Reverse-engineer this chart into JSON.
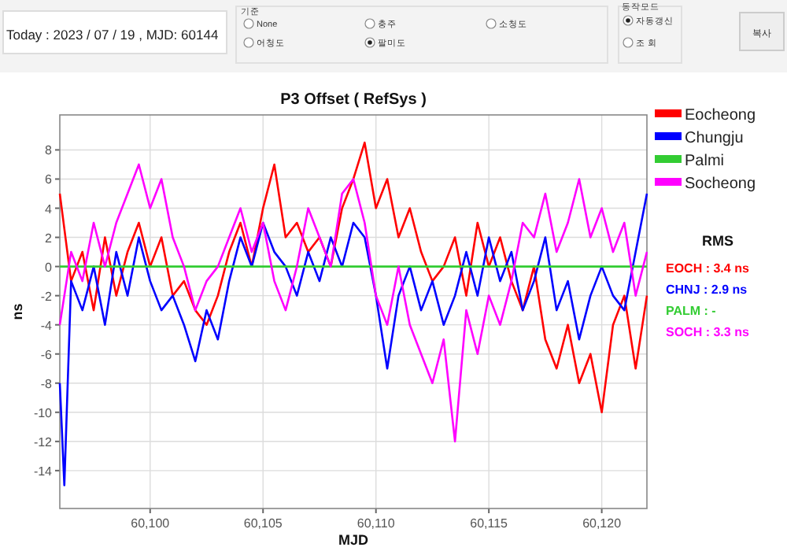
{
  "chart_data": {
    "type": "line",
    "title": "P3 Offset ( RefSys )",
    "xlabel": "MJD",
    "ylabel": "ns",
    "xlim": [
      60096,
      60122
    ],
    "ylim": [
      -16.6,
      10.4
    ],
    "xticks": [
      {
        "value": 60100,
        "label": "60,100"
      },
      {
        "value": 60105,
        "label": "60,105"
      },
      {
        "value": 60110,
        "label": "60,110"
      },
      {
        "value": 60115,
        "label": "60,115"
      },
      {
        "value": 60120,
        "label": "60,120"
      }
    ],
    "yticks": [
      -14,
      -12,
      -10,
      -8,
      -6,
      -4,
      -2,
      0,
      2,
      4,
      6,
      8
    ],
    "grid": true,
    "legend": "top right",
    "marker": "none",
    "line_style": "solid",
    "x": [
      60096,
      60096.5,
      60097,
      60097.5,
      60098,
      60098.5,
      60099,
      60099.5,
      60100,
      60100.5,
      60101,
      60101.5,
      60102,
      60102.5,
      60103,
      60103.5,
      60104,
      60104.5,
      60105,
      60105.5,
      60106,
      60106.5,
      60107,
      60107.5,
      60108,
      60108.5,
      60109,
      60109.5,
      60110,
      60110.5,
      60111,
      60111.5,
      60112,
      60112.5,
      60113,
      60113.5,
      60114,
      60114.5,
      60115,
      60115.5,
      60116,
      60116.5,
      60117,
      60117.5,
      60118,
      60118.5,
      60119,
      60119.5,
      60120,
      60120.5,
      60121,
      60121.5,
      60122
    ],
    "series": [
      {
        "name": "Eocheong",
        "color": "#ff0000",
        "values": [
          5,
          -1,
          1,
          -3,
          2,
          -2,
          1,
          3,
          0,
          2,
          -2,
          -1,
          -3,
          -4,
          -2,
          1,
          3,
          0,
          4,
          7,
          2,
          3,
          1,
          2,
          0,
          4,
          6,
          8.5,
          4,
          6,
          2,
          4,
          1,
          -1,
          0,
          2,
          -2,
          3,
          0,
          2,
          -1,
          -3,
          0,
          -5,
          -7,
          -4,
          -8,
          -6,
          -10,
          -4,
          -2,
          -7,
          -2
        ]
      },
      {
        "name": "Chungju",
        "color": "#0000ff",
        "x": [
          60096,
          60096.2,
          60096.5,
          60097,
          60097.5,
          60098,
          60098.5,
          60099,
          60099.5,
          60100,
          60100.5,
          60101,
          60101.5,
          60102,
          60102.5,
          60103,
          60103.5,
          60104,
          60104.5,
          60105,
          60105.5,
          60106,
          60106.5,
          60107,
          60107.5,
          60108,
          60108.5,
          60109,
          60109.5,
          60110,
          60110.5,
          60111,
          60111.5,
          60112,
          60112.5,
          60113,
          60113.5,
          60114,
          60114.5,
          60115,
          60115.5,
          60116,
          60116.5,
          60117,
          60117.5,
          60118,
          60118.5,
          60119,
          60119.5,
          60120,
          60120.5,
          60121,
          60121.5,
          60122
        ],
        "values": [
          -8,
          -15,
          -1,
          -3,
          0,
          -4,
          1,
          -2,
          2,
          -1,
          -3,
          -2,
          -4,
          -6.5,
          -3,
          -5,
          -1,
          2,
          0,
          3,
          1,
          0,
          -2,
          1,
          -1,
          2,
          0,
          3,
          2,
          -2,
          -7,
          -2,
          0,
          -3,
          -1,
          -4,
          -2,
          1,
          -2,
          2,
          -1,
          1,
          -3,
          -1,
          2,
          -3,
          -1,
          -5,
          -2,
          0,
          -2,
          -3,
          1,
          5
        ]
      },
      {
        "name": "Palmi",
        "color": "#33cc33",
        "x": [
          60096,
          60122
        ],
        "values": [
          0,
          0
        ]
      },
      {
        "name": "Socheong",
        "color": "#ff00ff",
        "values": [
          -4,
          1,
          -1,
          3,
          0,
          3,
          5,
          7,
          4,
          6,
          2,
          0,
          -3,
          -1,
          0,
          2,
          4,
          1,
          3,
          -1,
          -3,
          0,
          4,
          2,
          0,
          5,
          6,
          3,
          -2,
          -4,
          0,
          -4,
          -6,
          -8,
          -5,
          -12,
          -3,
          -6,
          -2,
          -4,
          -1,
          3,
          2,
          5,
          1,
          3,
          6,
          2,
          4,
          1,
          3,
          -2,
          1
        ]
      }
    ],
    "annotations": [
      "RMS",
      "EOCH : 3.4 ns",
      "CHNJ : 2.9 ns",
      "PALM : -",
      "SOCH : 3.3 ns",
      "Today : 2023 / 07 / 19 , MJD: 60144",
      "기준",
      "None",
      "충주",
      "소청도",
      "어청도",
      "팔미도",
      "동작모드",
      "자동갱신",
      "조 회",
      "복사"
    ]
  }
}
